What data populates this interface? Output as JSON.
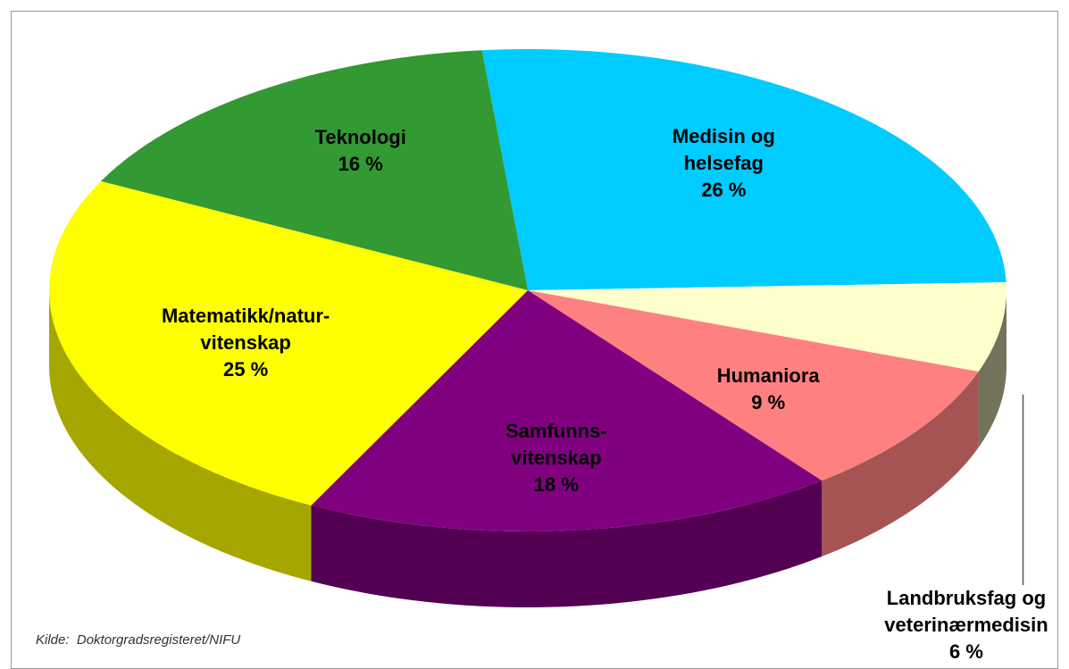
{
  "chart_data": {
    "type": "pie3d",
    "categories": [
      "Medisin og\nhelsefag",
      "Landbruksfag og\nveterinærmedisin",
      "Humaniora",
      "Samfunns-\nvitenskap",
      "Matematikk/natur-\nvitenskap",
      "Teknologi"
    ],
    "values": [
      26,
      6,
      9,
      18,
      25,
      16
    ],
    "value_labels": [
      "26 %",
      "6 %",
      "9 %",
      "18 %",
      "25 %",
      "16 %"
    ],
    "colors": [
      "#00ccff",
      "#ffffcc",
      "#ff8080",
      "#800080",
      "#ffff00",
      "#339933"
    ],
    "source": "Kilde:  Doktorgradsregisteret/NIFU"
  }
}
